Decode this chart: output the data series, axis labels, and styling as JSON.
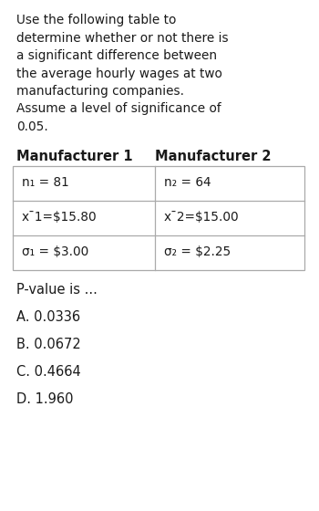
{
  "background_color": "#ffffff",
  "question_text_lines": [
    "Use the following table to",
    "determine whether or not there is",
    "a significant difference between",
    "the average hourly wages at two",
    "manufacturing companies.",
    "Assume a level of significance of",
    "0.05."
  ],
  "table_header_left": "Manufacturer 1",
  "table_header_right": "Manufacturer 2",
  "table_rows_plain": [
    [
      "n₁ = 81",
      "n₂ = 64"
    ],
    [
      "x¯1=$15.80",
      "x¯2=$15.00"
    ],
    [
      "σ₁ = $3.00",
      "σ₂ = $2.25"
    ]
  ],
  "pvalue_label": "P-value is ...",
  "options": [
    "A. 0.0336",
    "B. 0.0672",
    "C. 0.4664",
    "D. 1.960"
  ],
  "text_color": "#1a1a1a",
  "table_border_color": "#aaaaaa",
  "font_size_question": 9.8,
  "font_size_header": 10.5,
  "font_size_table": 9.8,
  "font_size_options": 10.5
}
